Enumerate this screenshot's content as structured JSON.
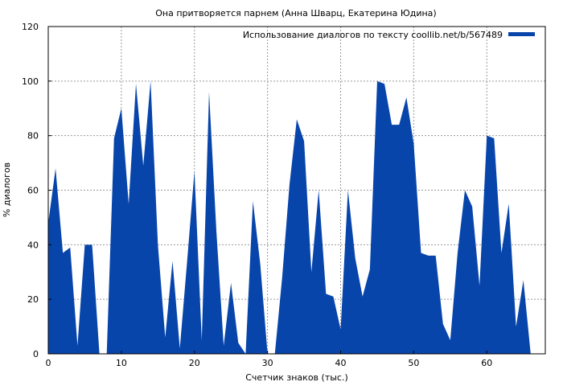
{
  "chart_data": {
    "type": "area",
    "title": "Она притворяется парнем (Анна Шварц, Екатерина Юдина)",
    "xlabel": "Счетчик знаков (тыс.)",
    "ylabel": "% диалогов",
    "xlim": [
      0,
      68
    ],
    "ylim": [
      0,
      120
    ],
    "xticks": [
      0,
      10,
      20,
      30,
      40,
      50,
      60
    ],
    "yticks": [
      0,
      20,
      40,
      60,
      80,
      100,
      120
    ],
    "grid": true,
    "legend_position": "top-right",
    "colors": {
      "series": "#0845ab",
      "grid": "#999999",
      "axis": "#000000"
    },
    "series": [
      {
        "name": "Использование диалогов по тексту coollib.net/b/567489",
        "x": [
          0,
          1,
          2,
          3,
          4,
          5,
          6,
          7,
          8,
          9,
          10,
          11,
          12,
          13,
          14,
          15,
          16,
          17,
          18,
          19,
          20,
          21,
          22,
          23,
          24,
          25,
          26,
          27,
          28,
          29,
          30,
          31,
          32,
          33,
          34,
          35,
          36,
          37,
          38,
          39,
          40,
          41,
          42,
          43,
          44,
          45,
          46,
          47,
          48,
          49,
          50,
          51,
          52,
          53,
          54,
          55,
          56,
          57,
          58,
          59,
          60,
          61,
          62,
          63,
          64,
          65,
          66,
          67
        ],
        "values": [
          48,
          68,
          37,
          39,
          3,
          40,
          40,
          0,
          0,
          79,
          90,
          55,
          99,
          69,
          100,
          40,
          6,
          34,
          2,
          34,
          67,
          5,
          96,
          45,
          3,
          26,
          4,
          0,
          56,
          33,
          0,
          0,
          28,
          62,
          86,
          78,
          30,
          60,
          22,
          21,
          9,
          60,
          35,
          21,
          31,
          100,
          99,
          84,
          84,
          94,
          77,
          37,
          36,
          36,
          11,
          5,
          37,
          60,
          54,
          25,
          80,
          79,
          37,
          55,
          10,
          27,
          0,
          0
        ]
      }
    ]
  }
}
